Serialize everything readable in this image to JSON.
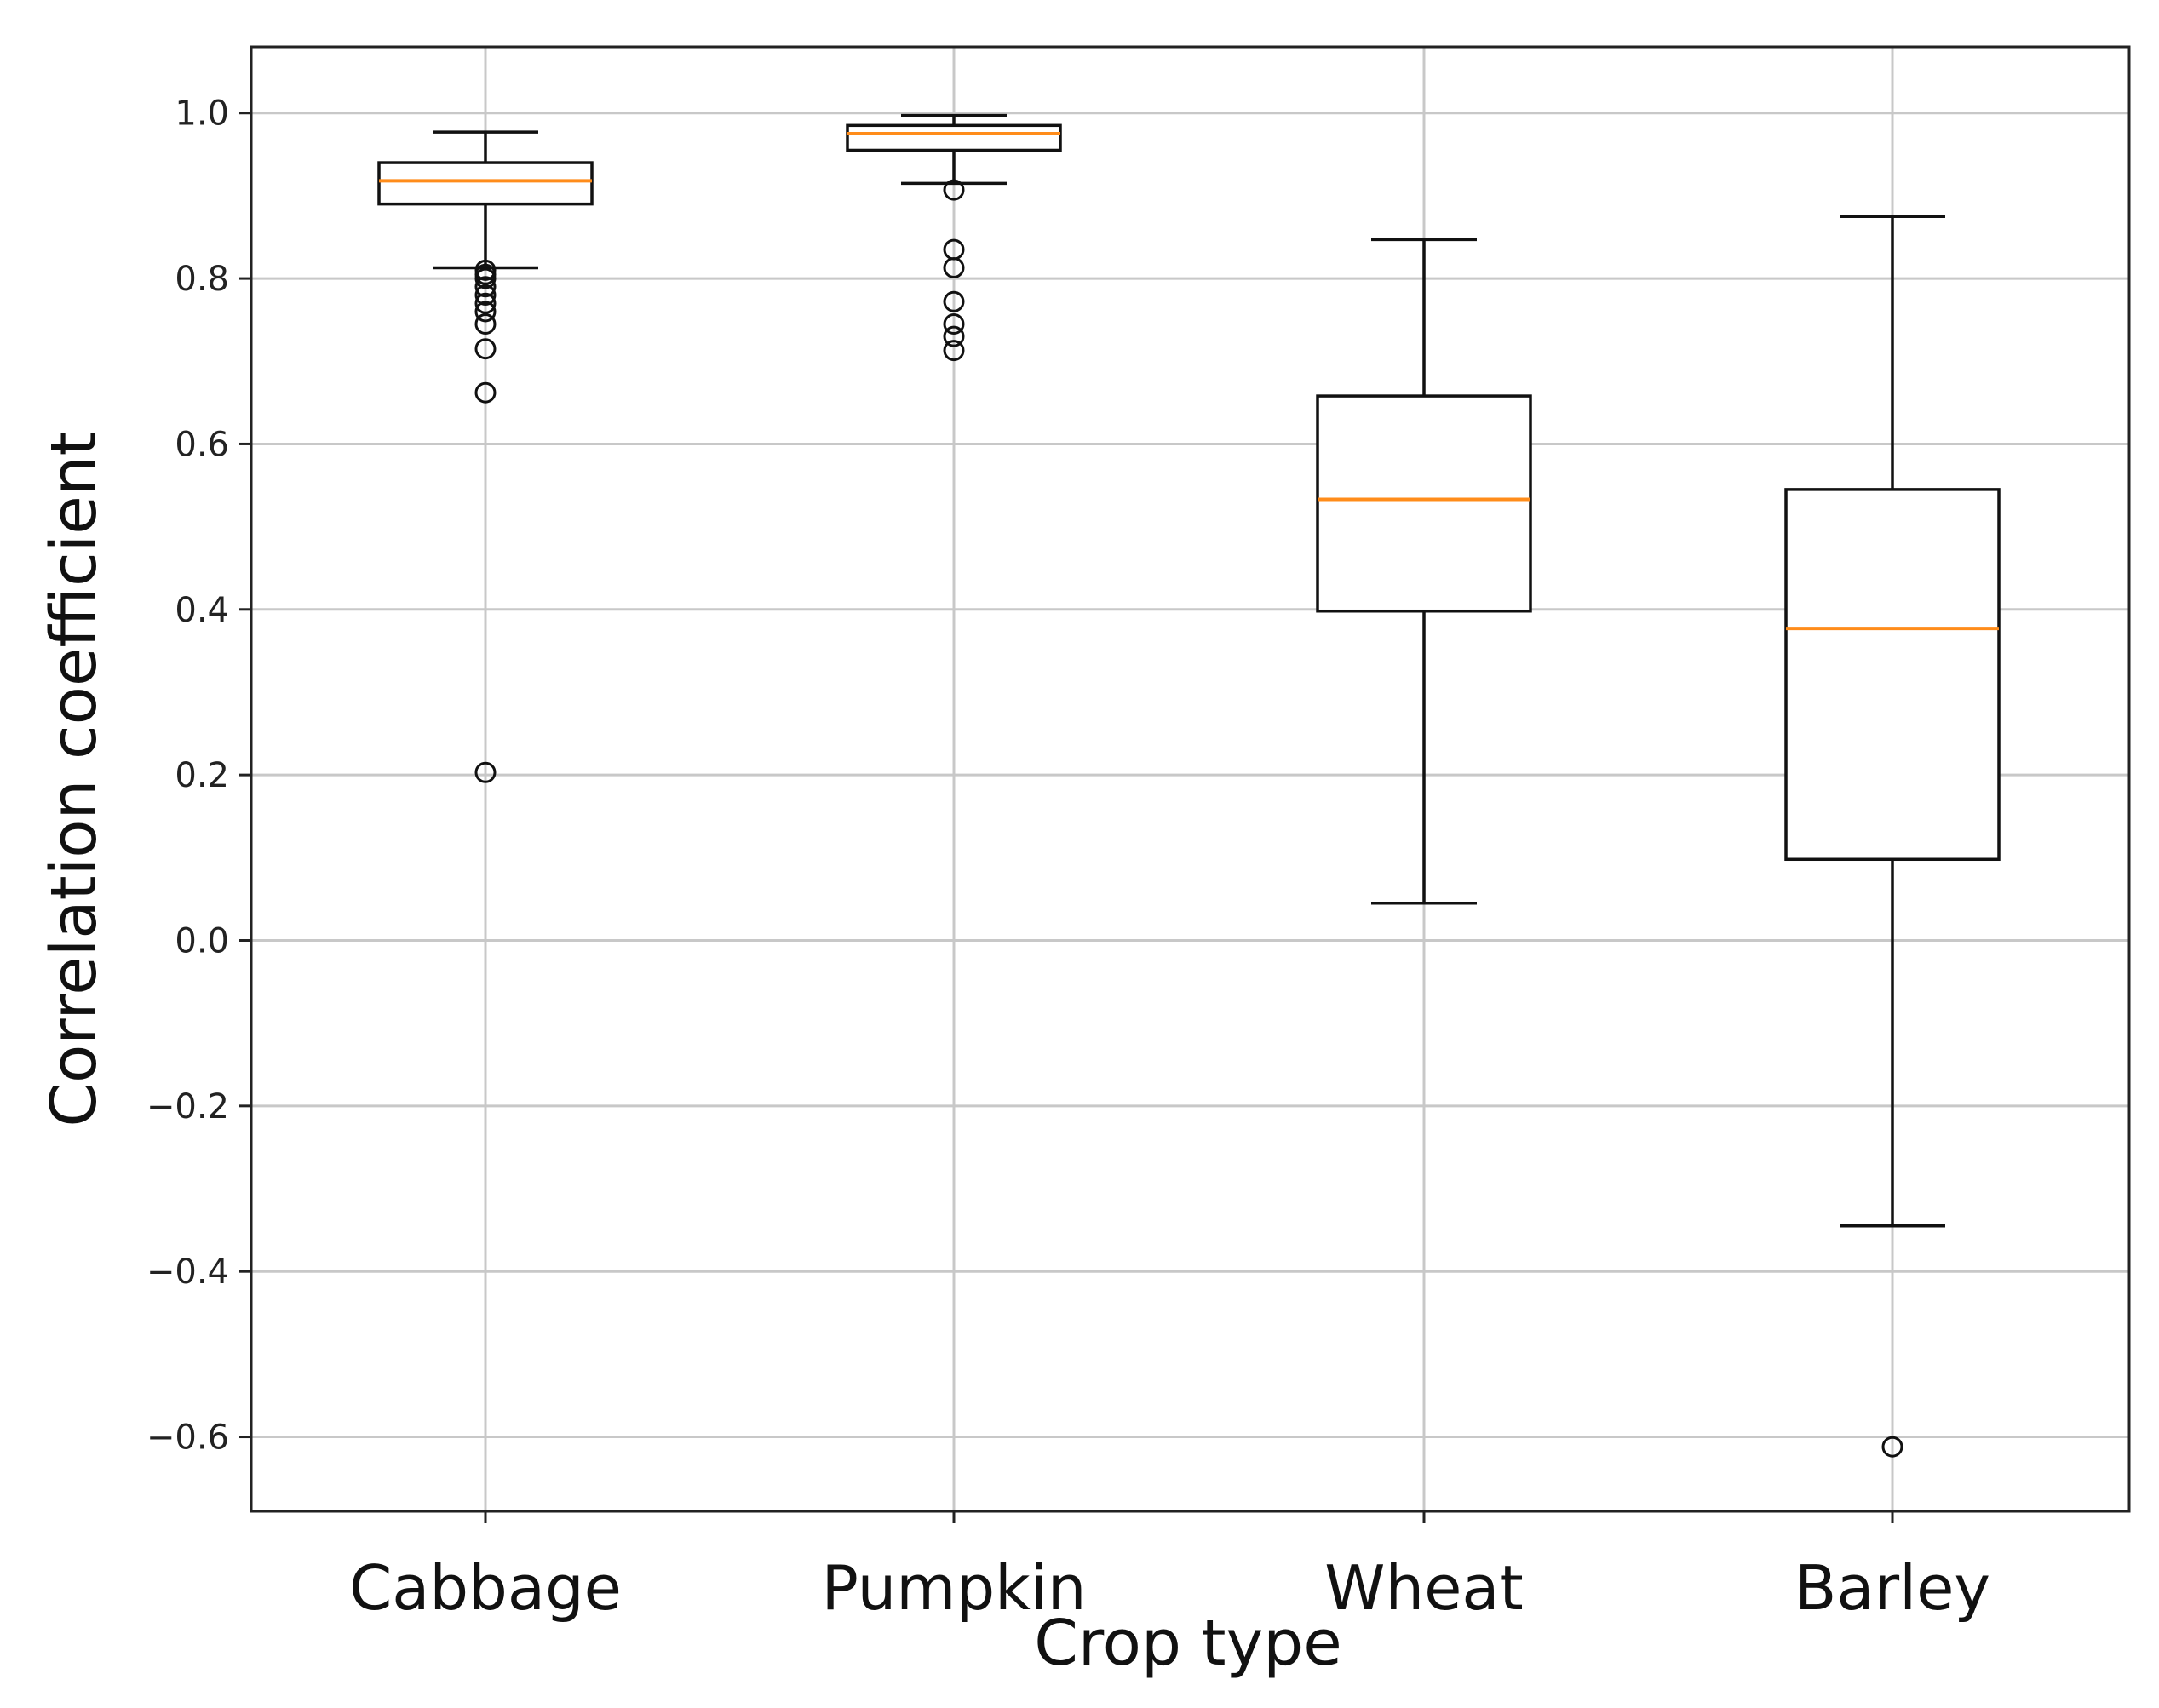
{
  "chart_data": {
    "type": "box",
    "title": "",
    "xlabel": "Crop type",
    "ylabel": "Correlation coefficient",
    "ylim": [
      -0.69,
      1.08
    ],
    "yticks": [
      -0.6,
      -0.4,
      -0.2,
      0.0,
      0.2,
      0.4,
      0.6,
      0.8,
      1.0
    ],
    "ytick_labels": [
      "−0.6",
      "−0.4",
      "−0.2",
      "0.0",
      "0.2",
      "0.4",
      "0.6",
      "0.8",
      "1.0"
    ],
    "grid": true,
    "median_color": "#ff8c1a",
    "categories": [
      "Cabbage",
      "Pumpkin",
      "Wheat",
      "Barley"
    ],
    "boxes": [
      {
        "name": "Cabbage",
        "whisker_low": 0.813,
        "q1": 0.89,
        "median": 0.918,
        "q3": 0.94,
        "whisker_high": 0.977,
        "outliers": [
          0.81,
          0.805,
          0.8,
          0.79,
          0.78,
          0.77,
          0.76,
          0.745,
          0.715,
          0.662,
          0.203
        ]
      },
      {
        "name": "Pumpkin",
        "whisker_low": 0.915,
        "q1": 0.955,
        "median": 0.975,
        "q3": 0.985,
        "whisker_high": 0.997,
        "outliers": [
          0.907,
          0.835,
          0.813,
          0.772,
          0.745,
          0.73,
          0.713
        ]
      },
      {
        "name": "Wheat",
        "whisker_low": 0.045,
        "q1": 0.398,
        "median": 0.533,
        "q3": 0.658,
        "whisker_high": 0.847,
        "outliers": []
      },
      {
        "name": "Barley",
        "whisker_low": -0.345,
        "q1": 0.098,
        "median": 0.377,
        "q3": 0.545,
        "whisker_high": 0.875,
        "outliers": [
          -0.612
        ]
      }
    ]
  }
}
